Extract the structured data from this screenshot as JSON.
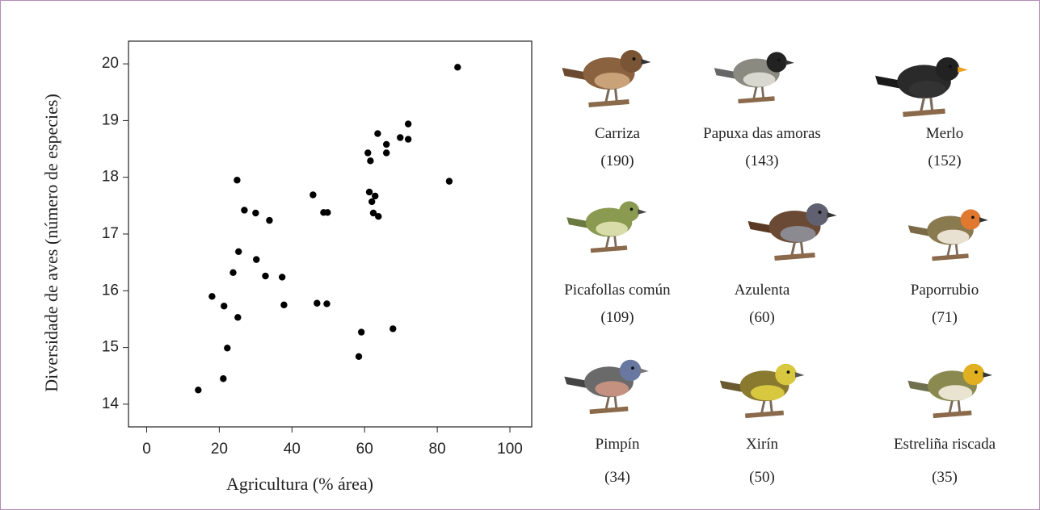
{
  "chart_data": {
    "type": "scatter",
    "xlabel": "Agricultura  (% área)",
    "ylabel": "Diversidade de aves (número de especies)",
    "x": [
      14.2,
      21.1,
      22.2,
      25.1,
      21.3,
      18.0,
      23.8,
      25.3,
      30.2,
      32.7,
      37.3,
      37.8,
      24.9,
      26.9,
      30.0,
      33.8,
      45.8,
      48.7,
      49.8,
      46.9,
      49.6,
      59.1,
      58.4,
      67.8,
      60.9,
      61.6,
      63.6,
      66.0,
      66.0,
      69.8,
      72.0,
      72.0,
      61.3,
      62.9,
      62.0,
      62.4,
      63.8,
      83.3,
      85.6
    ],
    "values": [
      14.25,
      14.45,
      14.99,
      15.53,
      15.73,
      15.9,
      16.32,
      16.69,
      16.55,
      16.26,
      16.24,
      15.75,
      17.95,
      17.42,
      17.37,
      17.24,
      17.69,
      17.38,
      17.38,
      15.78,
      15.77,
      15.27,
      14.84,
      15.33,
      18.43,
      18.29,
      18.77,
      18.58,
      18.43,
      18.7,
      18.94,
      18.67,
      17.74,
      17.67,
      17.57,
      17.37,
      17.31,
      17.93,
      19.94
    ],
    "color": "#000000",
    "xlim": [
      -5,
      106
    ],
    "ylim": [
      13.6,
      20.4
    ],
    "xticks": [
      0,
      20,
      40,
      60,
      80,
      100
    ],
    "yticks": [
      14,
      15,
      16,
      17,
      18,
      19,
      20
    ],
    "grid": false
  },
  "birds": [
    {
      "name": "Carriza",
      "count": "(190)"
    },
    {
      "name": "Papuxa das amoras",
      "count": "(143)"
    },
    {
      "name": "Merlo",
      "count": "(152)"
    },
    {
      "name": "Picafollas común",
      "count": "(109)"
    },
    {
      "name": "Azulenta",
      "count": "(60)"
    },
    {
      "name": "Paporrubio",
      "count": "(71)"
    },
    {
      "name": "Pimpín",
      "count": "(34)"
    },
    {
      "name": "Xirín",
      "count": "(50)"
    },
    {
      "name": "Estreliña riscada",
      "count": "(35)"
    }
  ]
}
